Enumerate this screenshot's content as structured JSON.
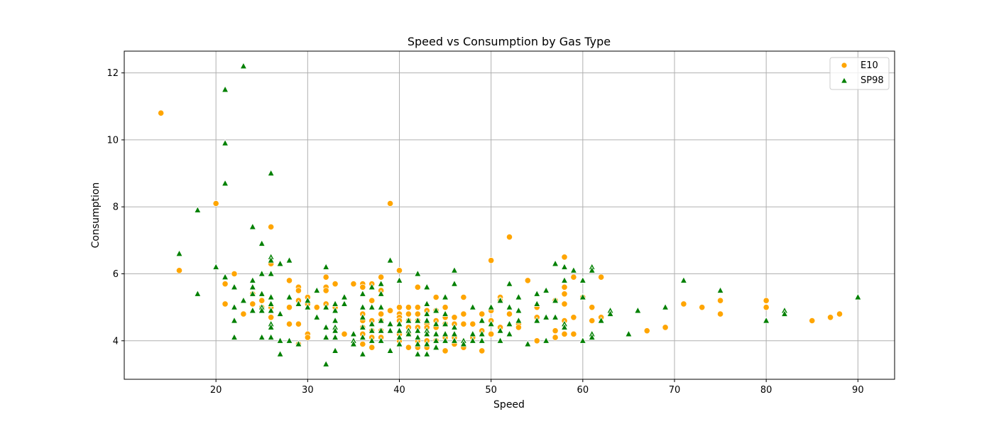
{
  "chart_data": {
    "type": "scatter",
    "title": "Speed vs Consumption by Gas Type",
    "xlabel": "Speed",
    "ylabel": "Consumption",
    "xlim": [
      10,
      94
    ],
    "ylim": [
      2.85,
      12.65
    ],
    "x_ticks": [
      20,
      30,
      40,
      50,
      60,
      70,
      80,
      90
    ],
    "y_ticks": [
      4,
      6,
      8,
      10,
      12
    ],
    "grid": true,
    "legend_position": "top-right",
    "series": [
      {
        "name": "E10",
        "marker": "circle",
        "color": "#FFA500",
        "points": [
          [
            14,
            10.8
          ],
          [
            16,
            6.1
          ],
          [
            20,
            8.1
          ],
          [
            21,
            5.7
          ],
          [
            21,
            5.1
          ],
          [
            22,
            6.0
          ],
          [
            23,
            4.8
          ],
          [
            24,
            5.4
          ],
          [
            24,
            5.1
          ],
          [
            25,
            5.2
          ],
          [
            25,
            5.0
          ],
          [
            26,
            7.4
          ],
          [
            26,
            6.3
          ],
          [
            26,
            5.0
          ],
          [
            26,
            4.7
          ],
          [
            28,
            5.8
          ],
          [
            28,
            5.0
          ],
          [
            28,
            4.5
          ],
          [
            29,
            5.6
          ],
          [
            29,
            5.5
          ],
          [
            29,
            5.2
          ],
          [
            29,
            4.5
          ],
          [
            29,
            3.9
          ],
          [
            30,
            5.3
          ],
          [
            30,
            5.1
          ],
          [
            30,
            4.2
          ],
          [
            30,
            4.1
          ],
          [
            31,
            5.0
          ],
          [
            32,
            5.9
          ],
          [
            32,
            5.6
          ],
          [
            32,
            5.5
          ],
          [
            32,
            5.1
          ],
          [
            33,
            5.7
          ],
          [
            33,
            5.0
          ],
          [
            34,
            4.2
          ],
          [
            35,
            5.7
          ],
          [
            36,
            5.7
          ],
          [
            36,
            5.6
          ],
          [
            36,
            4.8
          ],
          [
            36,
            4.6
          ],
          [
            36,
            4.4
          ],
          [
            36,
            4.2
          ],
          [
            36,
            3.9
          ],
          [
            37,
            5.7
          ],
          [
            37,
            5.2
          ],
          [
            37,
            4.6
          ],
          [
            37,
            4.3
          ],
          [
            37,
            4.1
          ],
          [
            37,
            3.8
          ],
          [
            38,
            5.9
          ],
          [
            38,
            5.5
          ],
          [
            38,
            4.8
          ],
          [
            38,
            4.6
          ],
          [
            38,
            4.3
          ],
          [
            38,
            4.1
          ],
          [
            39,
            8.1
          ],
          [
            39,
            4.9
          ],
          [
            40,
            6.1
          ],
          [
            40,
            5.0
          ],
          [
            40,
            4.8
          ],
          [
            40,
            4.7
          ],
          [
            40,
            4.6
          ],
          [
            40,
            4.2
          ],
          [
            40,
            4.0
          ],
          [
            41,
            5.0
          ],
          [
            41,
            4.8
          ],
          [
            41,
            4.6
          ],
          [
            41,
            4.4
          ],
          [
            41,
            4.2
          ],
          [
            41,
            3.8
          ],
          [
            42,
            5.6
          ],
          [
            42,
            5.0
          ],
          [
            42,
            4.8
          ],
          [
            42,
            4.6
          ],
          [
            42,
            4.4
          ],
          [
            42,
            4.0
          ],
          [
            42,
            3.8
          ],
          [
            43,
            4.9
          ],
          [
            43,
            4.5
          ],
          [
            43,
            4.4
          ],
          [
            43,
            4.0
          ],
          [
            43,
            3.8
          ],
          [
            44,
            5.3
          ],
          [
            44,
            4.9
          ],
          [
            44,
            4.6
          ],
          [
            44,
            4.4
          ],
          [
            44,
            4.0
          ],
          [
            45,
            5.0
          ],
          [
            45,
            4.7
          ],
          [
            45,
            4.5
          ],
          [
            45,
            4.1
          ],
          [
            45,
            3.7
          ],
          [
            46,
            4.7
          ],
          [
            46,
            4.5
          ],
          [
            46,
            4.1
          ],
          [
            46,
            3.9
          ],
          [
            47,
            5.3
          ],
          [
            47,
            4.8
          ],
          [
            47,
            4.5
          ],
          [
            47,
            3.8
          ],
          [
            48,
            4.5
          ],
          [
            48,
            4.1
          ],
          [
            49,
            4.8
          ],
          [
            49,
            4.3
          ],
          [
            49,
            3.7
          ],
          [
            50,
            6.4
          ],
          [
            50,
            4.9
          ],
          [
            50,
            4.6
          ],
          [
            50,
            4.2
          ],
          [
            51,
            5.3
          ],
          [
            51,
            5.2
          ],
          [
            51,
            4.4
          ],
          [
            52,
            7.1
          ],
          [
            52,
            4.8
          ],
          [
            53,
            4.5
          ],
          [
            53,
            4.4
          ],
          [
            54,
            5.8
          ],
          [
            55,
            5.0
          ],
          [
            55,
            4.7
          ],
          [
            55,
            4.0
          ],
          [
            57,
            5.2
          ],
          [
            57,
            4.3
          ],
          [
            57,
            4.1
          ],
          [
            58,
            6.5
          ],
          [
            58,
            5.6
          ],
          [
            58,
            5.4
          ],
          [
            58,
            5.1
          ],
          [
            58,
            4.6
          ],
          [
            58,
            4.2
          ],
          [
            59,
            5.9
          ],
          [
            59,
            4.7
          ],
          [
            59,
            4.2
          ],
          [
            60,
            5.3
          ],
          [
            61,
            5.0
          ],
          [
            61,
            4.6
          ],
          [
            62,
            5.9
          ],
          [
            62,
            4.7
          ],
          [
            67,
            4.3
          ],
          [
            69,
            4.4
          ],
          [
            71,
            5.1
          ],
          [
            73,
            5.0
          ],
          [
            75,
            5.2
          ],
          [
            75,
            4.8
          ],
          [
            80,
            5.2
          ],
          [
            80,
            5.0
          ],
          [
            85,
            4.6
          ],
          [
            87,
            4.7
          ],
          [
            88,
            4.8
          ]
        ]
      },
      {
        "name": "SP98",
        "marker": "triangle",
        "color": "#008000",
        "points": [
          [
            16,
            6.6
          ],
          [
            18,
            7.9
          ],
          [
            18,
            5.4
          ],
          [
            20,
            6.2
          ],
          [
            21,
            11.5
          ],
          [
            21,
            9.9
          ],
          [
            21,
            8.7
          ],
          [
            21,
            5.9
          ],
          [
            22,
            5.6
          ],
          [
            22,
            5.0
          ],
          [
            22,
            4.6
          ],
          [
            22,
            4.1
          ],
          [
            23,
            12.2
          ],
          [
            23,
            5.2
          ],
          [
            24,
            7.4
          ],
          [
            24,
            5.8
          ],
          [
            24,
            5.6
          ],
          [
            24,
            5.4
          ],
          [
            24,
            4.9
          ],
          [
            25,
            6.9
          ],
          [
            25,
            6.0
          ],
          [
            25,
            5.4
          ],
          [
            25,
            5.0
          ],
          [
            25,
            4.9
          ],
          [
            25,
            4.1
          ],
          [
            26,
            9.0
          ],
          [
            26,
            6.5
          ],
          [
            26,
            6.4
          ],
          [
            26,
            6.0
          ],
          [
            26,
            5.3
          ],
          [
            26,
            5.1
          ],
          [
            26,
            4.9
          ],
          [
            26,
            4.5
          ],
          [
            26,
            4.4
          ],
          [
            26,
            4.1
          ],
          [
            27,
            6.3
          ],
          [
            27,
            4.8
          ],
          [
            27,
            4.0
          ],
          [
            27,
            3.6
          ],
          [
            28,
            6.4
          ],
          [
            28,
            5.3
          ],
          [
            28,
            4.0
          ],
          [
            29,
            5.1
          ],
          [
            29,
            3.9
          ],
          [
            30,
            5.2
          ],
          [
            30,
            5.0
          ],
          [
            31,
            5.5
          ],
          [
            31,
            4.7
          ],
          [
            32,
            6.2
          ],
          [
            32,
            5.0
          ],
          [
            32,
            4.4
          ],
          [
            32,
            4.1
          ],
          [
            32,
            3.3
          ],
          [
            33,
            5.1
          ],
          [
            33,
            4.9
          ],
          [
            33,
            4.6
          ],
          [
            33,
            4.4
          ],
          [
            33,
            4.3
          ],
          [
            33,
            4.1
          ],
          [
            33,
            3.7
          ],
          [
            34,
            5.3
          ],
          [
            34,
            5.1
          ],
          [
            35,
            4.2
          ],
          [
            35,
            4.0
          ],
          [
            35,
            3.9
          ],
          [
            36,
            5.4
          ],
          [
            36,
            5.0
          ],
          [
            36,
            4.7
          ],
          [
            36,
            4.4
          ],
          [
            36,
            4.1
          ],
          [
            36,
            3.6
          ],
          [
            37,
            5.6
          ],
          [
            37,
            5.0
          ],
          [
            37,
            4.5
          ],
          [
            37,
            4.3
          ],
          [
            37,
            4.0
          ],
          [
            38,
            5.7
          ],
          [
            38,
            5.4
          ],
          [
            38,
            5.0
          ],
          [
            38,
            4.6
          ],
          [
            38,
            4.3
          ],
          [
            38,
            4.0
          ],
          [
            39,
            6.4
          ],
          [
            39,
            4.5
          ],
          [
            39,
            4.3
          ],
          [
            39,
            3.7
          ],
          [
            40,
            5.8
          ],
          [
            40,
            4.5
          ],
          [
            40,
            4.3
          ],
          [
            40,
            4.1
          ],
          [
            40,
            3.9
          ],
          [
            41,
            4.6
          ],
          [
            41,
            4.3
          ],
          [
            41,
            4.2
          ],
          [
            42,
            6.0
          ],
          [
            42,
            4.6
          ],
          [
            42,
            4.3
          ],
          [
            42,
            4.1
          ],
          [
            42,
            3.9
          ],
          [
            42,
            3.6
          ],
          [
            43,
            5.6
          ],
          [
            43,
            5.1
          ],
          [
            43,
            4.8
          ],
          [
            43,
            4.6
          ],
          [
            43,
            4.3
          ],
          [
            43,
            4.2
          ],
          [
            43,
            3.9
          ],
          [
            43,
            3.6
          ],
          [
            44,
            4.9
          ],
          [
            44,
            4.5
          ],
          [
            44,
            4.2
          ],
          [
            44,
            4.0
          ],
          [
            44,
            3.8
          ],
          [
            45,
            5.3
          ],
          [
            45,
            4.8
          ],
          [
            45,
            4.5
          ],
          [
            45,
            4.2
          ],
          [
            45,
            4.0
          ],
          [
            46,
            6.1
          ],
          [
            46,
            5.7
          ],
          [
            46,
            4.4
          ],
          [
            46,
            4.2
          ],
          [
            46,
            4.0
          ],
          [
            47,
            4.0
          ],
          [
            47,
            3.9
          ],
          [
            48,
            5.0
          ],
          [
            48,
            4.2
          ],
          [
            48,
            4.0
          ],
          [
            49,
            4.6
          ],
          [
            49,
            4.2
          ],
          [
            49,
            4.0
          ],
          [
            50,
            5.0
          ],
          [
            50,
            4.5
          ],
          [
            51,
            5.2
          ],
          [
            51,
            4.3
          ],
          [
            51,
            4.0
          ],
          [
            52,
            5.7
          ],
          [
            52,
            5.0
          ],
          [
            52,
            4.5
          ],
          [
            52,
            4.2
          ],
          [
            53,
            5.3
          ],
          [
            53,
            4.9
          ],
          [
            53,
            4.6
          ],
          [
            54,
            3.9
          ],
          [
            55,
            5.4
          ],
          [
            55,
            5.1
          ],
          [
            55,
            4.6
          ],
          [
            56,
            5.5
          ],
          [
            56,
            4.7
          ],
          [
            56,
            4.0
          ],
          [
            57,
            6.3
          ],
          [
            57,
            5.2
          ],
          [
            57,
            4.7
          ],
          [
            58,
            6.2
          ],
          [
            58,
            5.8
          ],
          [
            58,
            4.5
          ],
          [
            58,
            4.4
          ],
          [
            59,
            6.1
          ],
          [
            60,
            5.8
          ],
          [
            60,
            5.3
          ],
          [
            60,
            4.0
          ],
          [
            61,
            6.2
          ],
          [
            61,
            6.1
          ],
          [
            61,
            4.2
          ],
          [
            61,
            4.1
          ],
          [
            62,
            4.6
          ],
          [
            63,
            4.9
          ],
          [
            63,
            4.8
          ],
          [
            65,
            4.2
          ],
          [
            66,
            4.9
          ],
          [
            69,
            5.0
          ],
          [
            71,
            5.8
          ],
          [
            75,
            5.5
          ],
          [
            80,
            4.6
          ],
          [
            82,
            4.9
          ],
          [
            82,
            4.8
          ],
          [
            90,
            5.3
          ]
        ]
      }
    ]
  }
}
